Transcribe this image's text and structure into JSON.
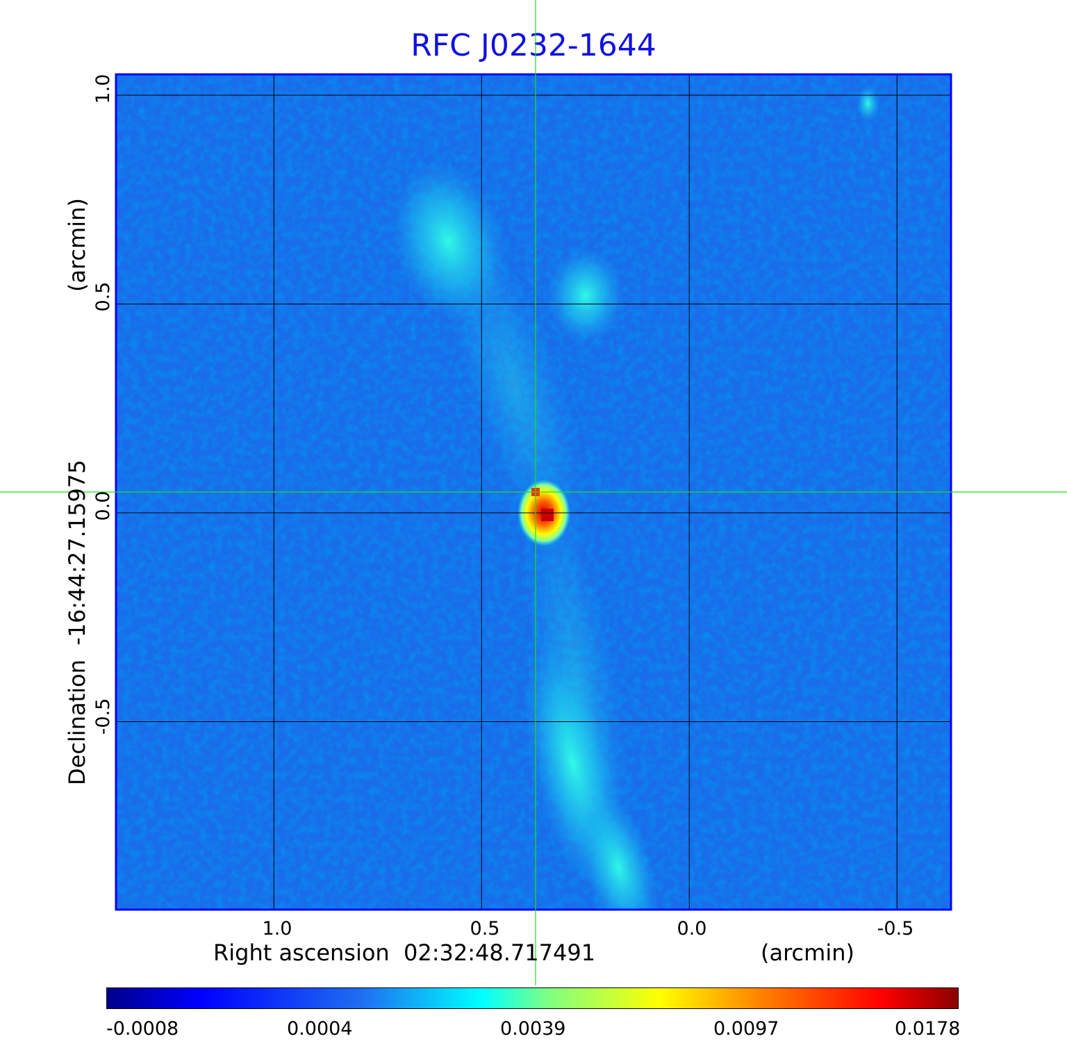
{
  "title": "RFC J0232-1644",
  "colors": {
    "title": "#1010e0",
    "grid": "#000000",
    "crosshair": "#22dd22",
    "frame": "#0000ff"
  },
  "chart_data": {
    "type": "heatmap",
    "title": "RFC J0232-1644",
    "xlabel": "Right ascension  02:32:48.717491",
    "xunit": "(arcmin)",
    "ylabel": "Declination  -16:44:27.15975",
    "yunit": "(arcmin)",
    "x_ticks": [
      "1.0",
      "0.5",
      "0.0",
      "-0.5"
    ],
    "y_ticks": [
      "1.0",
      "0.5",
      "0.0",
      "-0.5"
    ],
    "xlim": [
      1.38,
      -0.63
    ],
    "ylim": [
      -0.95,
      1.05
    ],
    "grid": true,
    "crosshair": {
      "x": 0.37,
      "y": 0.05
    },
    "colormap": "jet",
    "colorbar_ticks": [
      "-0.0008",
      "0.0004",
      "0.0039",
      "0.0097",
      "0.0178"
    ],
    "features": [
      {
        "name": "core",
        "x": 0.35,
        "y": 0.0,
        "peak": 0.0178
      },
      {
        "name": "north lobe",
        "x": 0.58,
        "y": 0.65
      },
      {
        "name": "north knot",
        "x": 0.25,
        "y": 0.52
      },
      {
        "name": "south jet",
        "x": 0.28,
        "y": -0.6
      },
      {
        "name": "south tail",
        "x": 0.17,
        "y": -0.85
      },
      {
        "name": "compact source",
        "x": -0.43,
        "y": 0.98
      }
    ]
  }
}
